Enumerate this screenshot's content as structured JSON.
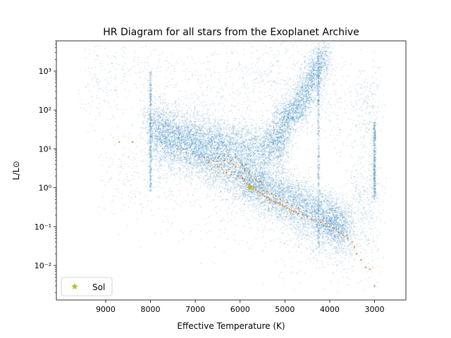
{
  "chart_data": {
    "type": "scatter",
    "title": "HR Diagram for all stars from the Exoplanet Archive",
    "xlabel": "Effective Temperature (K)",
    "ylabel": "L/L⊙",
    "x_axis": {
      "reversed": true,
      "xlim": [
        10100,
        2300
      ],
      "ticks": [
        9000,
        8000,
        7000,
        6000,
        5000,
        4000,
        3000
      ]
    },
    "y_axis": {
      "scale": "log",
      "ylim": [
        0.0013,
        6000
      ],
      "ticks": [
        0.01,
        0.1,
        1,
        10,
        100,
        1000
      ],
      "tick_labels": [
        "10⁻²",
        "10⁻¹",
        "10⁰",
        "10¹",
        "10²",
        "10³"
      ]
    },
    "grid": false,
    "legend": {
      "placement": "lower-left",
      "entries": [
        {
          "label": "Sol",
          "marker": "star",
          "color": "#bcbd22"
        }
      ]
    },
    "series": [
      {
        "color": "#1f77b4",
        "marker": "dot",
        "alpha": 0.2,
        "description_regions": [
          {
            "kind": "main-sequence",
            "points": [
              [
                8000,
                20
              ],
              [
                7500,
                13
              ],
              [
                7000,
                8
              ],
              [
                6500,
                4.5
              ],
              [
                6000,
                2.3
              ],
              [
                5700,
                1.4
              ],
              [
                5400,
                0.9
              ],
              [
                5000,
                0.55
              ],
              [
                4600,
                0.32
              ],
              [
                4200,
                0.18
              ],
              [
                3900,
                0.12
              ],
              [
                3600,
                0.07
              ]
            ],
            "spread": 0.35,
            "count": 9000
          },
          {
            "kind": "upper-band",
            "points": [
              [
                8000,
                60
              ],
              [
                7500,
                30
              ],
              [
                7000,
                20
              ],
              [
                6500,
                15
              ],
              [
                6000,
                12
              ],
              [
                5500,
                11
              ],
              [
                5200,
                12
              ],
              [
                5000,
                20
              ]
            ],
            "spread": 0.3,
            "count": 4000
          },
          {
            "kind": "red-clump",
            "points": [
              [
                5200,
                50
              ],
              [
                5000,
                60
              ],
              [
                4900,
                70
              ],
              [
                4800,
                90
              ],
              [
                4700,
                120
              ],
              [
                4600,
                200
              ],
              [
                4500,
                350
              ],
              [
                4400,
                600
              ],
              [
                4300,
                1000
              ],
              [
                4200,
                1800
              ],
              [
                4100,
                2500
              ]
            ],
            "spread": 0.25,
            "count": 2500
          },
          {
            "kind": "halo",
            "points": [
              [
                9500,
                300
              ],
              [
                8500,
                1000
              ],
              [
                7000,
                200
              ],
              [
                6000,
                500
              ],
              [
                5000,
                2000
              ],
              [
                3300,
                50
              ],
              [
                3000,
                300
              ],
              [
                9000,
                3
              ],
              [
                7500,
                1
              ],
              [
                5000,
                0.05
              ],
              [
                4000,
                0.05
              ],
              [
                3000,
                0.05
              ],
              [
                3500,
                1
              ],
              [
                2900,
                1
              ]
            ],
            "spread": 0.6,
            "count": 2500
          }
        ],
        "vertical_strips": [
          {
            "x": 8000,
            "ylo": 0.8,
            "yhi": 1000
          },
          {
            "x": 4250,
            "ylo": 0.03,
            "yhi": 3000
          },
          {
            "x": 3000,
            "ylo": 0.5,
            "yhi": 50
          }
        ]
      },
      {
        "color": "#ff7f0e",
        "marker": "dot",
        "points": [
          [
            8700,
            15
          ],
          [
            8400,
            15
          ],
          [
            7400,
            10
          ],
          [
            7200,
            8
          ],
          [
            6800,
            6
          ],
          [
            6700,
            4.5
          ],
          [
            6600,
            5
          ],
          [
            6500,
            3.5
          ],
          [
            6450,
            4
          ],
          [
            6400,
            3
          ],
          [
            6350,
            5
          ],
          [
            6300,
            2.5
          ],
          [
            6250,
            3
          ],
          [
            6200,
            2.2
          ],
          [
            6150,
            4
          ],
          [
            6100,
            3.5
          ],
          [
            6050,
            2
          ],
          [
            6000,
            2.5
          ],
          [
            5950,
            1.8
          ],
          [
            5900,
            1.6
          ],
          [
            5850,
            1.3
          ],
          [
            5800,
            1.2
          ],
          [
            5750,
            1.1
          ],
          [
            5700,
            1.0
          ],
          [
            5650,
            0.9
          ],
          [
            5600,
            0.8
          ],
          [
            5550,
            0.75
          ],
          [
            5500,
            0.7
          ],
          [
            5450,
            0.6
          ],
          [
            5400,
            0.55
          ],
          [
            5350,
            0.5
          ],
          [
            5300,
            0.48
          ],
          [
            5250,
            0.45
          ],
          [
            5200,
            0.42
          ],
          [
            5150,
            0.4
          ],
          [
            5100,
            0.38
          ],
          [
            5050,
            0.36
          ],
          [
            5000,
            0.33
          ],
          [
            4950,
            0.3
          ],
          [
            4900,
            0.28
          ],
          [
            4850,
            0.26
          ],
          [
            4800,
            0.25
          ],
          [
            4750,
            0.24
          ],
          [
            4700,
            0.22
          ],
          [
            4600,
            0.2
          ],
          [
            4500,
            0.18
          ],
          [
            4400,
            0.16
          ],
          [
            4300,
            0.14
          ],
          [
            4200,
            0.13
          ],
          [
            4100,
            0.12
          ],
          [
            4000,
            0.1
          ],
          [
            3900,
            0.09
          ],
          [
            3800,
            0.07
          ],
          [
            3700,
            0.06
          ],
          [
            3600,
            0.05
          ],
          [
            3500,
            0.04
          ],
          [
            3450,
            0.03
          ],
          [
            3400,
            0.02
          ],
          [
            3300,
            0.014
          ],
          [
            3200,
            0.009
          ],
          [
            3100,
            0.008
          ],
          [
            3000,
            0.003
          ],
          [
            6500,
            6
          ],
          [
            6350,
            7
          ],
          [
            6200,
            5
          ],
          [
            6100,
            6
          ],
          [
            5950,
            4
          ],
          [
            5900,
            3
          ],
          [
            5800,
            2.5
          ],
          [
            5750,
            2
          ],
          [
            5650,
            1.6
          ],
          [
            5550,
            1.5
          ],
          [
            5500,
            1.2
          ],
          [
            5400,
            0.8
          ],
          [
            5300,
            0.7
          ],
          [
            5200,
            0.6
          ],
          [
            5100,
            0.5
          ],
          [
            4950,
            0.42
          ],
          [
            4850,
            0.35
          ],
          [
            4700,
            0.3
          ]
        ]
      },
      {
        "name": "Sol",
        "color": "#bcbd22",
        "marker": "star",
        "points": [
          [
            5778,
            1.0
          ]
        ]
      }
    ]
  }
}
